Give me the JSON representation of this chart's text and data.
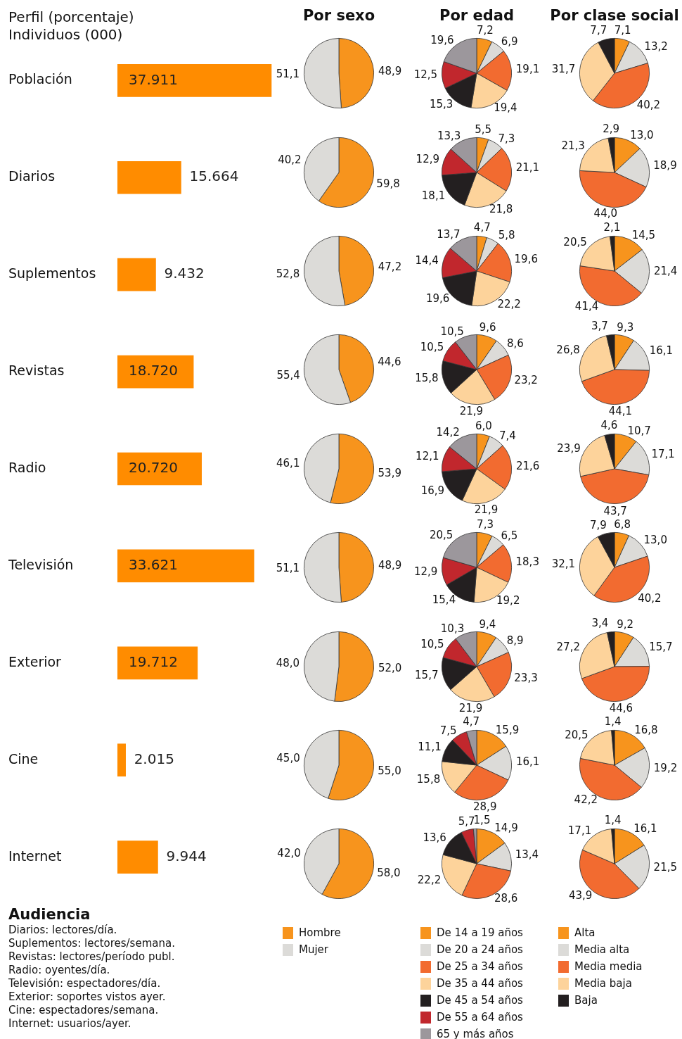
{
  "chart_data": [
    {
      "type": "bar",
      "orientation": "horizontal",
      "title": "Perfil (porcentaje)",
      "subtitle": "Individuos (000)",
      "tick_labels": "y",
      "color": "#ff8c00",
      "categories": [
        "Población",
        "Diarios",
        "Suplementos",
        "Revistas",
        "Radio",
        "Televisión",
        "Exterior",
        "Cine",
        "Internet"
      ],
      "values": [
        37911,
        15664,
        9432,
        18720,
        20720,
        33621,
        19712,
        2015,
        9944
      ],
      "value_labels": [
        "37.911",
        "15.664",
        "9.432",
        "18.720",
        "20.720",
        "33.621",
        "19.712",
        "2.015",
        "9.944"
      ],
      "annotations": [
        "Audiencia",
        "Diarios: lectores/día.",
        "Suplementos: lectores/semana.",
        "Revistas: lectores/período publ.",
        "Radio: oyentes/día.",
        "Televisión: espectadores/día.",
        "Exterior: soportes vistos ayer.",
        "Cine: espectadores/semana.",
        "Internet: usuarios/ayer."
      ]
    },
    {
      "type": "pie",
      "title": "Por sexo",
      "legend": "bottom",
      "categories": [
        "Hombre",
        "Mujer"
      ],
      "colors": [
        "#f7941d",
        "#dcdbd8"
      ],
      "series": [
        {
          "values": [
            48.9,
            51.1
          ],
          "value_labels": [
            "48,9",
            "51,1"
          ]
        },
        {
          "values": [
            59.8,
            40.2
          ],
          "value_labels": [
            "59,8",
            "40,2"
          ]
        },
        {
          "values": [
            47.2,
            52.8
          ],
          "value_labels": [
            "47,2",
            "52,8"
          ]
        },
        {
          "values": [
            44.6,
            55.4
          ],
          "value_labels": [
            "44,6",
            "55,4"
          ]
        },
        {
          "values": [
            53.9,
            46.1
          ],
          "value_labels": [
            "53,9",
            "46,1"
          ]
        },
        {
          "values": [
            48.9,
            51.1
          ],
          "value_labels": [
            "48,9",
            "51,1"
          ]
        },
        {
          "values": [
            52.0,
            48.0
          ],
          "value_labels": [
            "52,0",
            "48,0"
          ]
        },
        {
          "values": [
            55.0,
            45.0
          ],
          "value_labels": [
            "55,0",
            "45,0"
          ]
        },
        {
          "values": [
            58.0,
            42.0
          ],
          "value_labels": [
            "58,0",
            "42,0"
          ]
        }
      ]
    },
    {
      "type": "pie",
      "title": "Por edad",
      "legend": "bottom",
      "categories": [
        "De 14 a 19 años",
        "De 20 a 24 años",
        "De 25 a 34 años",
        "De 35 a 44 años",
        "De 45 a 54 años",
        "De 55 a 64 años",
        "65 y más años"
      ],
      "colors": [
        "#f7941d",
        "#dcdbd8",
        "#f26b30",
        "#fdd39b",
        "#231f20",
        "#c1272d",
        "#9c979c"
      ],
      "series": [
        {
          "values": [
            7.2,
            6.9,
            19.1,
            19.4,
            15.3,
            12.5,
            19.6
          ],
          "value_labels": [
            "7,2",
            "6,9",
            "19,1",
            "19,4",
            "15,3",
            "12,5",
            "19,6"
          ]
        },
        {
          "values": [
            5.5,
            7.3,
            21.1,
            21.8,
            18.1,
            12.9,
            13.3
          ],
          "value_labels": [
            "5,5",
            "7,3",
            "21,1",
            "21,8",
            "18,1",
            "12,9",
            "13,3"
          ]
        },
        {
          "values": [
            4.7,
            5.8,
            19.6,
            22.2,
            19.6,
            14.4,
            13.7
          ],
          "value_labels": [
            "4,7",
            "5,8",
            "19,6",
            "22,2",
            "19,6",
            "14,4",
            "13,7"
          ]
        },
        {
          "values": [
            9.6,
            8.6,
            23.2,
            21.9,
            15.8,
            10.5,
            10.5
          ],
          "value_labels": [
            "9,6",
            "8,6",
            "23,2",
            "21,9",
            "15,8",
            "10,5",
            "10,5"
          ]
        },
        {
          "values": [
            6.0,
            7.4,
            21.6,
            21.9,
            16.9,
            12.1,
            14.2
          ],
          "value_labels": [
            "6,0",
            "7,4",
            "21,6",
            "21,9",
            "16,9",
            "12,1",
            "14,2"
          ]
        },
        {
          "values": [
            7.3,
            6.5,
            18.3,
            19.2,
            15.4,
            12.9,
            20.5
          ],
          "value_labels": [
            "7,3",
            "6,5",
            "18,3",
            "19,2",
            "15,4",
            "12,9",
            "20,5"
          ]
        },
        {
          "values": [
            9.4,
            8.9,
            23.3,
            21.9,
            15.7,
            10.5,
            10.3
          ],
          "value_labels": [
            "9,4",
            "8,9",
            "23,3",
            "21,9",
            "15,7",
            "10,5",
            "10,3"
          ]
        },
        {
          "values": [
            15.9,
            16.1,
            28.9,
            15.8,
            11.1,
            7.5,
            4.7
          ],
          "value_labels": [
            "15,9",
            "16,1",
            "28,9",
            "15,8",
            "11,1",
            "7,5",
            "4,7"
          ]
        },
        {
          "values": [
            14.9,
            13.4,
            28.6,
            22.2,
            13.6,
            5.7,
            1.5
          ],
          "value_labels": [
            "14,9",
            "13,4",
            "28,6",
            "22,2",
            "13,6",
            "5,7",
            "1,5"
          ]
        }
      ]
    },
    {
      "type": "pie",
      "title": "Por clase social",
      "legend": "bottom",
      "categories": [
        "Alta",
        "Media alta",
        "Media media",
        "Media baja",
        "Baja"
      ],
      "colors": [
        "#f7941d",
        "#dcdbd8",
        "#f26b30",
        "#fdd39b",
        "#231f20"
      ],
      "series": [
        {
          "values": [
            7.1,
            13.2,
            40.2,
            31.7,
            7.7
          ],
          "value_labels": [
            "7,1",
            "13,2",
            "40,2",
            "31,7",
            "7,7"
          ]
        },
        {
          "values": [
            13.0,
            18.9,
            44.0,
            21.3,
            2.9
          ],
          "value_labels": [
            "13,0",
            "18,9",
            "44,0",
            "21,3",
            "2,9"
          ]
        },
        {
          "values": [
            14.5,
            21.4,
            41.4,
            20.5,
            2.1
          ],
          "value_labels": [
            "14,5",
            "21,4",
            "41,4",
            "20,5",
            "2,1"
          ]
        },
        {
          "values": [
            9.3,
            16.1,
            44.1,
            26.8,
            3.7
          ],
          "value_labels": [
            "9,3",
            "16,1",
            "44,1",
            "26,8",
            "3,7"
          ]
        },
        {
          "values": [
            10.7,
            17.1,
            43.7,
            23.9,
            4.6
          ],
          "value_labels": [
            "10,7",
            "17,1",
            "43,7",
            "23,9",
            "4,6"
          ]
        },
        {
          "values": [
            6.8,
            13.0,
            40.2,
            32.1,
            7.9
          ],
          "value_labels": [
            "6,8",
            "13,0",
            "40,2",
            "32,1",
            "7,9"
          ]
        },
        {
          "values": [
            9.2,
            15.7,
            44.6,
            27.2,
            3.4
          ],
          "value_labels": [
            "9,2",
            "15,7",
            "44,6",
            "27,2",
            "3,4"
          ]
        },
        {
          "values": [
            16.8,
            19.2,
            42.2,
            20.5,
            1.4
          ],
          "value_labels": [
            "16,8",
            "19,2",
            "42,2",
            "20,5",
            "1,4"
          ]
        },
        {
          "values": [
            16.1,
            21.5,
            43.9,
            17.1,
            1.4
          ],
          "value_labels": [
            "16,1",
            "21,5",
            "43,9",
            "17,1",
            "1,4"
          ]
        }
      ]
    }
  ]
}
